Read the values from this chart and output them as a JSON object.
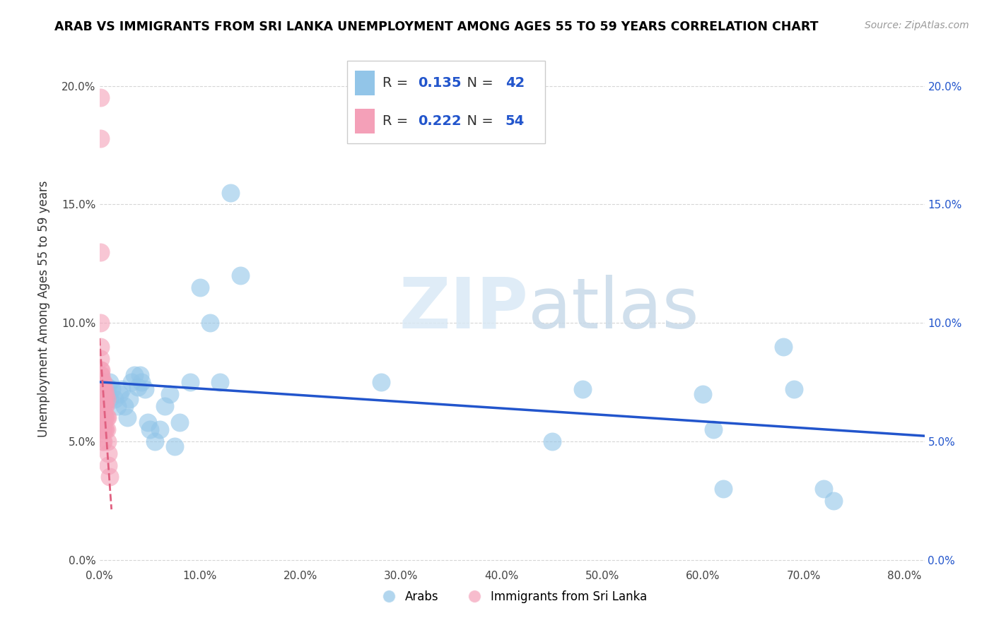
{
  "title": "ARAB VS IMMIGRANTS FROM SRI LANKA UNEMPLOYMENT AMONG AGES 55 TO 59 YEARS CORRELATION CHART",
  "source": "Source: ZipAtlas.com",
  "ylabel": "Unemployment Among Ages 55 to 59 years",
  "xlim": [
    0.0,
    0.82
  ],
  "ylim": [
    -0.003,
    0.215
  ],
  "xticks": [
    0.0,
    0.1,
    0.2,
    0.3,
    0.4,
    0.5,
    0.6,
    0.7,
    0.8
  ],
  "xtick_labels": [
    "0.0%",
    "10.0%",
    "20.0%",
    "30.0%",
    "40.0%",
    "50.0%",
    "60.0%",
    "70.0%",
    "80.0%"
  ],
  "yticks": [
    0.0,
    0.05,
    0.1,
    0.15,
    0.2
  ],
  "ytick_labels": [
    "0.0%",
    "5.0%",
    "10.0%",
    "15.0%",
    "20.0%"
  ],
  "arab_R": "0.135",
  "arab_N": "42",
  "srilanka_R": "0.222",
  "srilanka_N": "54",
  "arab_color": "#92C5E8",
  "srilanka_color": "#F4A0B8",
  "arab_line_color": "#2255CC",
  "srilanka_line_color": "#E06080",
  "highlight_color": "#2255CC",
  "legend_label_arab": "Arabs",
  "legend_label_srilanka": "Immigrants from Sri Lanka",
  "arab_x": [
    0.008,
    0.008,
    0.01,
    0.01,
    0.012,
    0.015,
    0.018,
    0.02,
    0.022,
    0.025,
    0.028,
    0.03,
    0.032,
    0.035,
    0.038,
    0.04,
    0.042,
    0.045,
    0.048,
    0.05,
    0.055,
    0.06,
    0.065,
    0.07,
    0.075,
    0.08,
    0.09,
    0.1,
    0.11,
    0.12,
    0.13,
    0.14,
    0.28,
    0.45,
    0.48,
    0.6,
    0.61,
    0.62,
    0.68,
    0.69,
    0.72,
    0.73
  ],
  "arab_y": [
    0.073,
    0.07,
    0.075,
    0.068,
    0.072,
    0.068,
    0.065,
    0.07,
    0.072,
    0.065,
    0.06,
    0.068,
    0.075,
    0.078,
    0.073,
    0.078,
    0.075,
    0.072,
    0.058,
    0.055,
    0.05,
    0.055,
    0.065,
    0.07,
    0.048,
    0.058,
    0.075,
    0.115,
    0.1,
    0.075,
    0.155,
    0.12,
    0.075,
    0.05,
    0.072,
    0.07,
    0.055,
    0.03,
    0.09,
    0.072,
    0.03,
    0.025
  ],
  "srilanka_x": [
    0.001,
    0.001,
    0.001,
    0.001,
    0.001,
    0.001,
    0.001,
    0.001,
    0.001,
    0.001,
    0.002,
    0.002,
    0.002,
    0.002,
    0.002,
    0.002,
    0.002,
    0.002,
    0.002,
    0.002,
    0.003,
    0.003,
    0.003,
    0.003,
    0.003,
    0.003,
    0.003,
    0.003,
    0.003,
    0.003,
    0.004,
    0.004,
    0.004,
    0.004,
    0.004,
    0.004,
    0.004,
    0.005,
    0.005,
    0.005,
    0.005,
    0.005,
    0.006,
    0.006,
    0.006,
    0.006,
    0.007,
    0.007,
    0.007,
    0.008,
    0.008,
    0.009,
    0.009,
    0.01
  ],
  "srilanka_y": [
    0.195,
    0.178,
    0.13,
    0.1,
    0.09,
    0.085,
    0.08,
    0.078,
    0.075,
    0.07,
    0.08,
    0.078,
    0.075,
    0.073,
    0.07,
    0.068,
    0.065,
    0.062,
    0.06,
    0.058,
    0.075,
    0.072,
    0.07,
    0.068,
    0.065,
    0.062,
    0.06,
    0.058,
    0.055,
    0.05,
    0.075,
    0.072,
    0.068,
    0.065,
    0.06,
    0.055,
    0.05,
    0.072,
    0.068,
    0.065,
    0.06,
    0.055,
    0.07,
    0.065,
    0.06,
    0.055,
    0.068,
    0.06,
    0.055,
    0.06,
    0.05,
    0.045,
    0.04,
    0.035
  ]
}
